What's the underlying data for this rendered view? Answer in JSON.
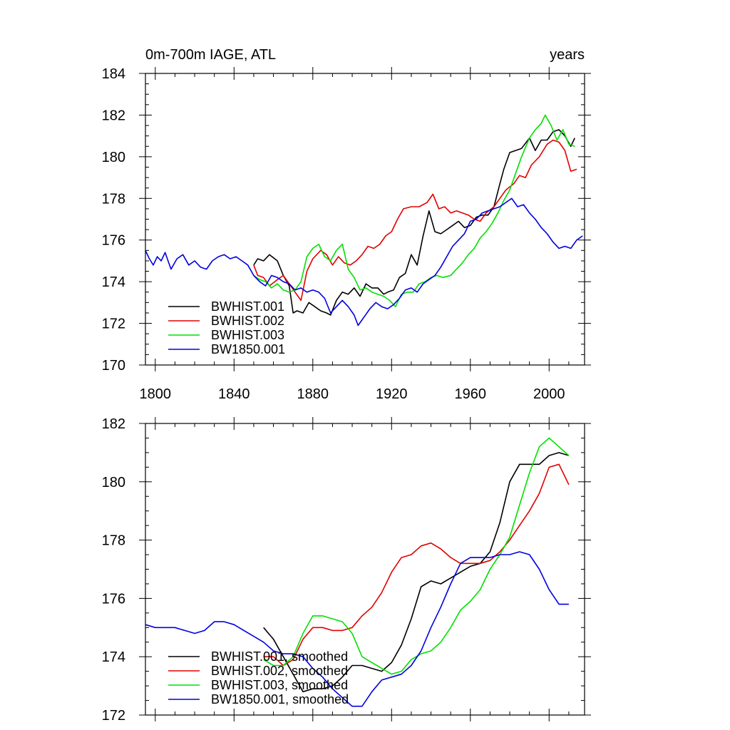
{
  "chart_data": [
    {
      "type": "line",
      "title_left": "0m-700m IAGE, ATL",
      "title_right": "years",
      "xlim": [
        1795,
        2018
      ],
      "ylim": [
        170,
        184
      ],
      "xticks": [
        1800,
        1840,
        1880,
        1920,
        1960,
        2000
      ],
      "yticks": [
        170,
        172,
        174,
        176,
        178,
        180,
        182,
        184
      ],
      "show_xtick_labels": true,
      "legend_position": "bottom-left",
      "series": [
        {
          "name": "BWHIST.001",
          "color": "#000000",
          "x": [
            1850,
            1852,
            1855,
            1858,
            1862,
            1865,
            1868,
            1870,
            1872,
            1875,
            1878,
            1881,
            1884,
            1887,
            1889,
            1892,
            1895,
            1898,
            1901,
            1904,
            1907,
            1910,
            1913,
            1916,
            1918,
            1921,
            1924,
            1927,
            1930,
            1933,
            1936,
            1939,
            1942,
            1945,
            1948,
            1951,
            1954,
            1957,
            1960,
            1963,
            1966,
            1969,
            1972,
            1975,
            1977,
            1980,
            1983,
            1986,
            1990,
            1993,
            1996,
            1999,
            2002,
            2005,
            2008,
            2011,
            2013
          ],
          "y": [
            174.8,
            175.1,
            175.0,
            175.3,
            175.0,
            174.3,
            173.8,
            172.5,
            172.6,
            172.5,
            173.0,
            172.8,
            172.6,
            172.5,
            172.4,
            173.1,
            173.5,
            173.4,
            173.7,
            173.3,
            173.9,
            173.7,
            173.7,
            173.4,
            173.5,
            173.6,
            174.2,
            174.4,
            175.3,
            174.8,
            176.2,
            177.4,
            176.4,
            176.3,
            176.5,
            176.7,
            176.9,
            176.6,
            176.7,
            177.1,
            177.2,
            177.2,
            177.6,
            178.7,
            179.4,
            180.2,
            180.3,
            180.4,
            180.9,
            180.3,
            180.8,
            180.8,
            181.2,
            181.3,
            181.0,
            180.5,
            180.9
          ]
        },
        {
          "name": "BWHIST.002",
          "color": "#e00000",
          "x": [
            1850,
            1852,
            1855,
            1858,
            1862,
            1865,
            1868,
            1871,
            1874,
            1877,
            1880,
            1884,
            1887,
            1890,
            1893,
            1896,
            1899,
            1902,
            1905,
            1908,
            1911,
            1914,
            1917,
            1920,
            1923,
            1926,
            1930,
            1934,
            1938,
            1941,
            1944,
            1947,
            1950,
            1953,
            1956,
            1959,
            1962,
            1965,
            1968,
            1972,
            1975,
            1978,
            1982,
            1985,
            1988,
            1991,
            1995,
            1999,
            2002,
            2005,
            2008,
            2011,
            2014
          ],
          "y": [
            174.8,
            174.3,
            174.2,
            173.8,
            174.1,
            174.3,
            173.9,
            173.5,
            173.1,
            174.5,
            175.1,
            175.5,
            175.3,
            174.8,
            175.2,
            174.9,
            174.8,
            175.0,
            175.3,
            175.7,
            175.6,
            175.8,
            176.2,
            176.4,
            177.0,
            177.5,
            177.6,
            177.6,
            177.8,
            178.2,
            177.5,
            177.6,
            177.3,
            177.4,
            177.3,
            177.2,
            177.0,
            176.9,
            177.3,
            177.6,
            178.0,
            178.4,
            178.7,
            179.1,
            179.0,
            179.6,
            180.0,
            180.6,
            180.8,
            180.7,
            180.3,
            179.3,
            179.4
          ]
        },
        {
          "name": "BWHIST.003",
          "color": "#00e000",
          "x": [
            1850,
            1853,
            1856,
            1859,
            1862,
            1865,
            1868,
            1871,
            1874,
            1877,
            1880,
            1883,
            1886,
            1889,
            1892,
            1895,
            1898,
            1901,
            1904,
            1907,
            1910,
            1913,
            1916,
            1919,
            1922,
            1925,
            1928,
            1931,
            1934,
            1937,
            1940,
            1943,
            1946,
            1950,
            1953,
            1956,
            1959,
            1962,
            1965,
            1968,
            1971,
            1974,
            1977,
            1980,
            1983,
            1986,
            1990,
            1993,
            1996,
            1998,
            2001,
            2004,
            2007,
            2010,
            2013
          ],
          "y": [
            174.3,
            174.1,
            174.0,
            173.7,
            173.9,
            173.6,
            173.5,
            173.6,
            174.0,
            175.2,
            175.6,
            175.8,
            175.2,
            175.0,
            175.5,
            175.8,
            174.6,
            174.2,
            173.6,
            173.7,
            173.5,
            173.4,
            173.3,
            173.1,
            172.8,
            173.4,
            173.5,
            173.5,
            173.9,
            174.0,
            174.2,
            174.3,
            174.2,
            174.3,
            174.6,
            174.9,
            175.3,
            175.6,
            176.1,
            176.4,
            176.8,
            177.3,
            177.9,
            178.4,
            179.2,
            180.0,
            180.9,
            181.3,
            181.6,
            182.0,
            181.5,
            180.8,
            181.3,
            180.6,
            180.5
          ]
        },
        {
          "name": "BW1850.001",
          "color": "#0000e0",
          "x": [
            1795,
            1797,
            1799,
            1801,
            1803,
            1805,
            1808,
            1811,
            1814,
            1817,
            1820,
            1823,
            1826,
            1829,
            1832,
            1835,
            1838,
            1841,
            1844,
            1847,
            1850,
            1853,
            1856,
            1859,
            1862,
            1865,
            1868,
            1871,
            1874,
            1877,
            1880,
            1883,
            1886,
            1889,
            1892,
            1895,
            1898,
            1901,
            1903,
            1906,
            1909,
            1912,
            1915,
            1918,
            1921,
            1924,
            1927,
            1930,
            1933,
            1936,
            1939,
            1942,
            1945,
            1948,
            1951,
            1954,
            1957,
            1960,
            1963,
            1966,
            1969,
            1972,
            1975,
            1978,
            1981,
            1984,
            1987,
            1990,
            1993,
            1996,
            1999,
            2002,
            2005,
            2008,
            2011,
            2014,
            2017
          ],
          "y": [
            175.5,
            175.1,
            174.8,
            175.2,
            175.0,
            175.4,
            174.6,
            175.1,
            175.3,
            174.8,
            175.0,
            174.7,
            174.6,
            175.0,
            175.2,
            175.3,
            175.1,
            175.2,
            175.0,
            174.8,
            174.3,
            174.0,
            173.8,
            174.3,
            174.2,
            174.0,
            173.9,
            173.6,
            173.7,
            173.5,
            173.6,
            173.5,
            173.2,
            172.5,
            172.8,
            173.1,
            172.8,
            172.4,
            171.9,
            172.3,
            172.7,
            173.0,
            172.8,
            172.7,
            172.9,
            173.2,
            173.6,
            173.7,
            173.5,
            173.9,
            174.1,
            174.3,
            174.7,
            175.2,
            175.7,
            176.0,
            176.3,
            176.9,
            177.0,
            177.3,
            177.4,
            177.5,
            177.6,
            177.8,
            178.0,
            177.6,
            177.7,
            177.3,
            177.0,
            176.6,
            176.3,
            175.9,
            175.6,
            175.7,
            175.6,
            176.0,
            176.2
          ]
        }
      ]
    },
    {
      "type": "line",
      "xlim": [
        1795,
        2018
      ],
      "ylim": [
        172,
        182
      ],
      "xticks": [
        1800,
        1840,
        1880,
        1920,
        1960,
        2000
      ],
      "yticks": [
        172,
        174,
        176,
        178,
        180,
        182
      ],
      "show_xtick_labels": false,
      "legend_position": "bottom-left",
      "series": [
        {
          "name": "BWHIST.001, smoothed",
          "color": "#000000",
          "x": [
            1855,
            1860,
            1865,
            1870,
            1875,
            1880,
            1885,
            1890,
            1895,
            1900,
            1905,
            1910,
            1915,
            1920,
            1925,
            1930,
            1935,
            1940,
            1945,
            1950,
            1955,
            1960,
            1965,
            1970,
            1975,
            1980,
            1985,
            1990,
            1995,
            2000,
            2005,
            2010
          ],
          "y": [
            175.0,
            174.6,
            174.0,
            173.4,
            172.8,
            172.9,
            172.9,
            173.0,
            173.3,
            173.7,
            173.7,
            173.6,
            173.5,
            173.8,
            174.4,
            175.3,
            176.4,
            176.6,
            176.5,
            176.7,
            176.9,
            177.1,
            177.2,
            177.6,
            178.6,
            180.0,
            180.6,
            180.6,
            180.6,
            180.9,
            181.0,
            180.9
          ]
        },
        {
          "name": "BWHIST.002, smoothed",
          "color": "#e00000",
          "x": [
            1855,
            1860,
            1865,
            1870,
            1875,
            1880,
            1885,
            1890,
            1895,
            1900,
            1905,
            1910,
            1915,
            1920,
            1925,
            1930,
            1935,
            1940,
            1945,
            1950,
            1955,
            1960,
            1965,
            1970,
            1975,
            1980,
            1985,
            1990,
            1995,
            2000,
            2005,
            2010
          ],
          "y": [
            174.0,
            174.0,
            173.7,
            173.9,
            174.6,
            175.0,
            175.0,
            174.9,
            174.9,
            175.0,
            175.4,
            175.7,
            176.2,
            176.9,
            177.4,
            177.5,
            177.8,
            177.9,
            177.7,
            177.4,
            177.2,
            177.2,
            177.2,
            177.3,
            177.6,
            178.0,
            178.5,
            179.0,
            179.6,
            180.5,
            180.6,
            179.9
          ]
        },
        {
          "name": "BWHIST.003, smoothed",
          "color": "#00e000",
          "x": [
            1855,
            1860,
            1865,
            1870,
            1875,
            1880,
            1885,
            1890,
            1895,
            1900,
            1905,
            1910,
            1915,
            1920,
            1925,
            1930,
            1935,
            1940,
            1945,
            1950,
            1955,
            1960,
            1965,
            1970,
            1975,
            1980,
            1985,
            1990,
            1995,
            2000,
            2005,
            2010
          ],
          "y": [
            173.9,
            173.7,
            173.7,
            174.0,
            174.8,
            175.4,
            175.4,
            175.3,
            175.2,
            174.8,
            174.0,
            173.8,
            173.6,
            173.4,
            173.5,
            173.9,
            174.1,
            174.2,
            174.5,
            175.0,
            175.6,
            175.9,
            176.3,
            177.0,
            177.5,
            178.1,
            179.2,
            180.3,
            181.2,
            181.5,
            181.2,
            180.9
          ]
        },
        {
          "name": "BW1850.001, smoothed",
          "color": "#0000e0",
          "x": [
            1795,
            1800,
            1805,
            1810,
            1815,
            1820,
            1825,
            1830,
            1835,
            1840,
            1845,
            1850,
            1855,
            1860,
            1865,
            1870,
            1875,
            1880,
            1885,
            1890,
            1895,
            1900,
            1905,
            1910,
            1915,
            1920,
            1925,
            1930,
            1935,
            1940,
            1945,
            1950,
            1955,
            1960,
            1965,
            1970,
            1975,
            1980,
            1985,
            1990,
            1995,
            2000,
            2005,
            2010
          ],
          "y": [
            175.1,
            175.0,
            175.0,
            175.0,
            174.9,
            174.8,
            174.9,
            175.2,
            175.2,
            175.1,
            174.9,
            174.7,
            174.5,
            174.2,
            174.1,
            174.1,
            174.0,
            173.6,
            173.3,
            172.9,
            172.6,
            172.3,
            172.3,
            172.8,
            173.2,
            173.3,
            173.4,
            173.7,
            174.2,
            175.0,
            175.7,
            176.5,
            177.2,
            177.4,
            177.4,
            177.4,
            177.5,
            177.5,
            177.6,
            177.5,
            177.0,
            176.3,
            175.8,
            175.8
          ]
        }
      ]
    }
  ]
}
